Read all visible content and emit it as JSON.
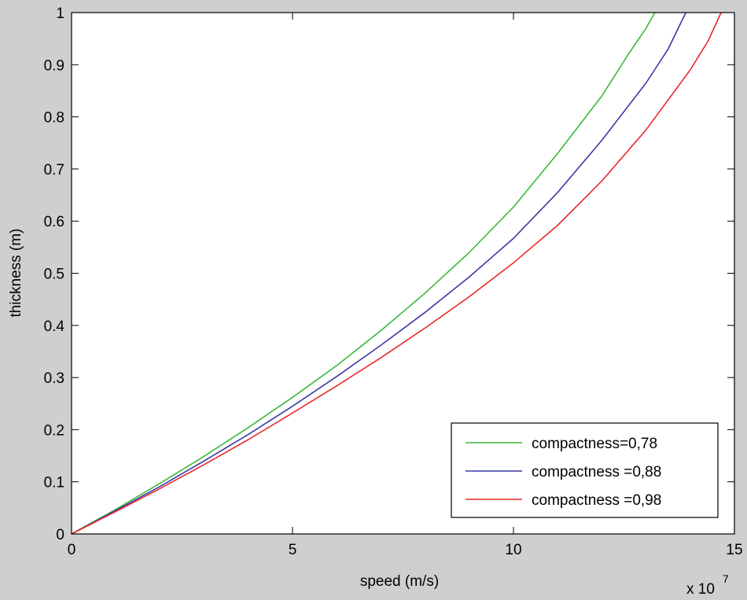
{
  "chart_data": {
    "type": "line",
    "title": "",
    "xlabel": "speed (m/s)",
    "ylabel": "thickness (m)",
    "x_multiplier_label": "x 10",
    "x_multiplier_exponent": "7",
    "xlim": [
      0,
      15
    ],
    "ylim": [
      0,
      1
    ],
    "xticks": [
      0,
      5,
      10,
      15
    ],
    "yticks": [
      0,
      0.1,
      0.2,
      0.3,
      0.4,
      0.5,
      0.6,
      0.7,
      0.8,
      0.9,
      1
    ],
    "xtick_labels": [
      "0",
      "5",
      "10",
      "15"
    ],
    "ytick_labels": [
      "0",
      "0.1",
      "0.2",
      "0.3",
      "0.4",
      "0.5",
      "0.6",
      "0.7",
      "0.8",
      "0.9",
      "1"
    ],
    "grid": false,
    "legend_position": "bottom-right",
    "x": [
      0,
      1,
      2,
      3,
      4,
      5,
      6,
      7,
      8,
      9,
      10,
      11,
      12,
      13,
      13.2,
      13.9,
      14.7
    ],
    "series": [
      {
        "name": "compactness=0,78",
        "color": "#3cb838",
        "points": [
          [
            0,
            0
          ],
          [
            1,
            0.047
          ],
          [
            2,
            0.097
          ],
          [
            3,
            0.149
          ],
          [
            4,
            0.204
          ],
          [
            5,
            0.262
          ],
          [
            6,
            0.323
          ],
          [
            7,
            0.39
          ],
          [
            8,
            0.462
          ],
          [
            9,
            0.54
          ],
          [
            10,
            0.627
          ],
          [
            11,
            0.73
          ],
          [
            12,
            0.84
          ],
          [
            12.6,
            0.92
          ],
          [
            13.0,
            0.97
          ],
          [
            13.2,
            1.0
          ]
        ]
      },
      {
        "name": "compactness =0,88",
        "color": "#3a3aa6",
        "points": [
          [
            0,
            0
          ],
          [
            1,
            0.045
          ],
          [
            2,
            0.091
          ],
          [
            3,
            0.14
          ],
          [
            4,
            0.191
          ],
          [
            5,
            0.245
          ],
          [
            6,
            0.302
          ],
          [
            7,
            0.362
          ],
          [
            8,
            0.425
          ],
          [
            9,
            0.493
          ],
          [
            10,
            0.567
          ],
          [
            11,
            0.655
          ],
          [
            12,
            0.755
          ],
          [
            13,
            0.865
          ],
          [
            13.5,
            0.93
          ],
          [
            13.9,
            1.0
          ]
        ]
      },
      {
        "name": "compactness =0,98",
        "color": "#e8292a",
        "points": [
          [
            0,
            0
          ],
          [
            1,
            0.043
          ],
          [
            2,
            0.087
          ],
          [
            3,
            0.133
          ],
          [
            4,
            0.181
          ],
          [
            5,
            0.232
          ],
          [
            6,
            0.284
          ],
          [
            7,
            0.338
          ],
          [
            8,
            0.395
          ],
          [
            9,
            0.455
          ],
          [
            10,
            0.52
          ],
          [
            11,
            0.592
          ],
          [
            12,
            0.677
          ],
          [
            13,
            0.775
          ],
          [
            14,
            0.89
          ],
          [
            14.4,
            0.945
          ],
          [
            14.7,
            1.0
          ]
        ]
      }
    ]
  }
}
